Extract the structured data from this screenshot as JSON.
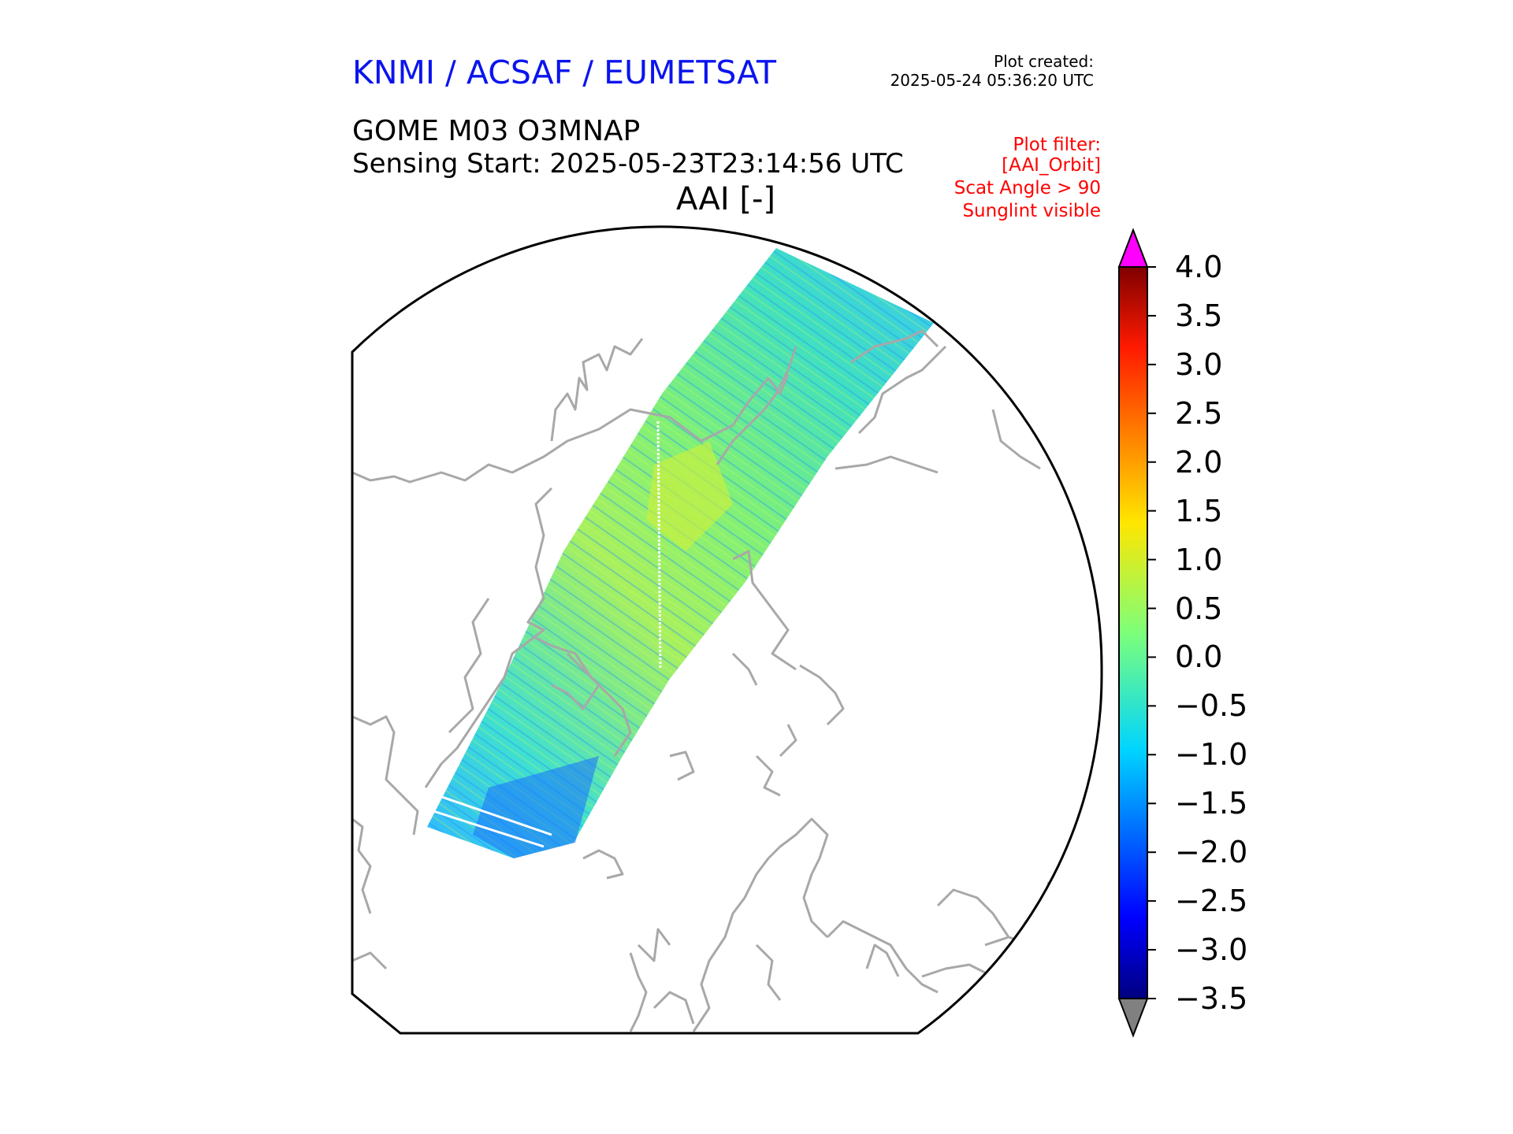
{
  "header": {
    "organisation": "KNMI / ACSAF / EUMETSAT",
    "plot_created_label": "Plot created:",
    "plot_created_time": "2025-05-24 05:36:20 UTC",
    "product": "GOME M03 O3MNAP",
    "sensing_start": "Sensing Start: 2025-05-23T23:14:56 UTC",
    "map_title": "AAI [-]"
  },
  "filters": [
    "Plot filter:",
    "[AAI_Orbit]",
    "Scat Angle > 90",
    "Sunglint visible"
  ],
  "colorbar": {
    "variable": "AAI",
    "min": -3.5,
    "max": 4.0,
    "ticks": [
      "4.0",
      "3.5",
      "3.0",
      "2.5",
      "2.0",
      "1.5",
      "1.0",
      "0.5",
      "0.0",
      "−0.5",
      "−1.0",
      "−1.5",
      "−2.0",
      "−2.5",
      "−3.0",
      "−3.5"
    ],
    "tick_values": [
      4.0,
      3.5,
      3.0,
      2.5,
      2.0,
      1.5,
      1.0,
      0.5,
      0.0,
      -0.5,
      -1.0,
      -1.5,
      -2.0,
      -2.5,
      -3.0,
      -3.5
    ],
    "over_color": "#ff00ff",
    "under_color": "#808080",
    "colormap": "jet"
  },
  "colors": {
    "coastline": "#a8a8a8",
    "swath_base": "#55e8a8",
    "border": "#000000"
  }
}
